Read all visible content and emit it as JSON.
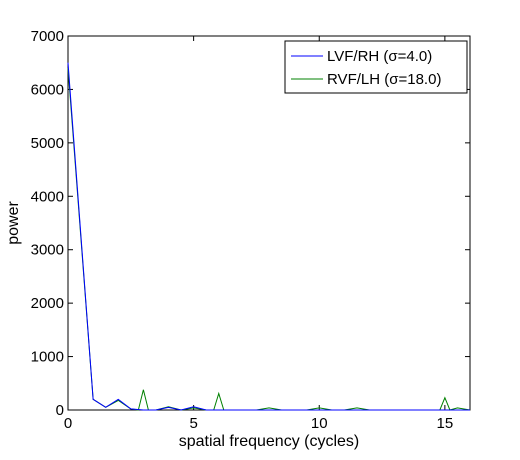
{
  "chart_data": {
    "type": "line",
    "title": "",
    "xlabel": "spatial frequency (cycles)",
    "ylabel": "power",
    "xlim": [
      0,
      16
    ],
    "ylim": [
      0,
      7000
    ],
    "xticks": [
      0,
      5,
      10,
      15
    ],
    "yticks": [
      0,
      1000,
      2000,
      3000,
      4000,
      5000,
      6000,
      7000
    ],
    "grid": false,
    "legend_position": "top-right",
    "series": [
      {
        "name": "LVF/RH (σ=4.0)",
        "color": "#0000ff",
        "x": [
          0,
          1,
          1.5,
          2,
          2.5,
          3,
          3.5,
          4,
          4.5,
          5,
          5.5,
          6,
          6.5,
          7,
          7.5,
          8,
          8.5,
          9,
          9.5,
          10,
          10.5,
          11,
          11.5,
          12,
          12.5,
          13,
          13.5,
          14,
          14.5,
          15,
          15.5,
          16
        ],
        "y": [
          6500,
          200,
          50,
          200,
          20,
          0,
          0,
          50,
          0,
          60,
          0,
          0,
          0,
          0,
          0,
          0,
          0,
          0,
          0,
          0,
          0,
          0,
          0,
          0,
          0,
          0,
          0,
          0,
          0,
          0,
          0,
          0
        ]
      },
      {
        "name": "RVF/LH (σ=18.0)",
        "color": "#008000",
        "x": [
          0,
          1,
          1.5,
          2,
          2.5,
          2.8,
          3,
          3.2,
          3.5,
          4,
          4.5,
          5,
          5.5,
          5.8,
          6,
          6.2,
          6.5,
          7,
          7.5,
          8,
          8.5,
          9,
          9.5,
          10,
          10.5,
          11,
          11.5,
          12,
          12.5,
          13,
          13.5,
          14,
          14.5,
          14.8,
          15,
          15.2,
          15.5,
          16
        ],
        "y": [
          6400,
          200,
          50,
          180,
          20,
          0,
          380,
          0,
          0,
          60,
          0,
          40,
          0,
          0,
          310,
          0,
          0,
          0,
          0,
          40,
          0,
          0,
          0,
          40,
          0,
          0,
          40,
          0,
          0,
          0,
          0,
          0,
          0,
          0,
          230,
          0,
          40,
          0
        ]
      }
    ]
  }
}
